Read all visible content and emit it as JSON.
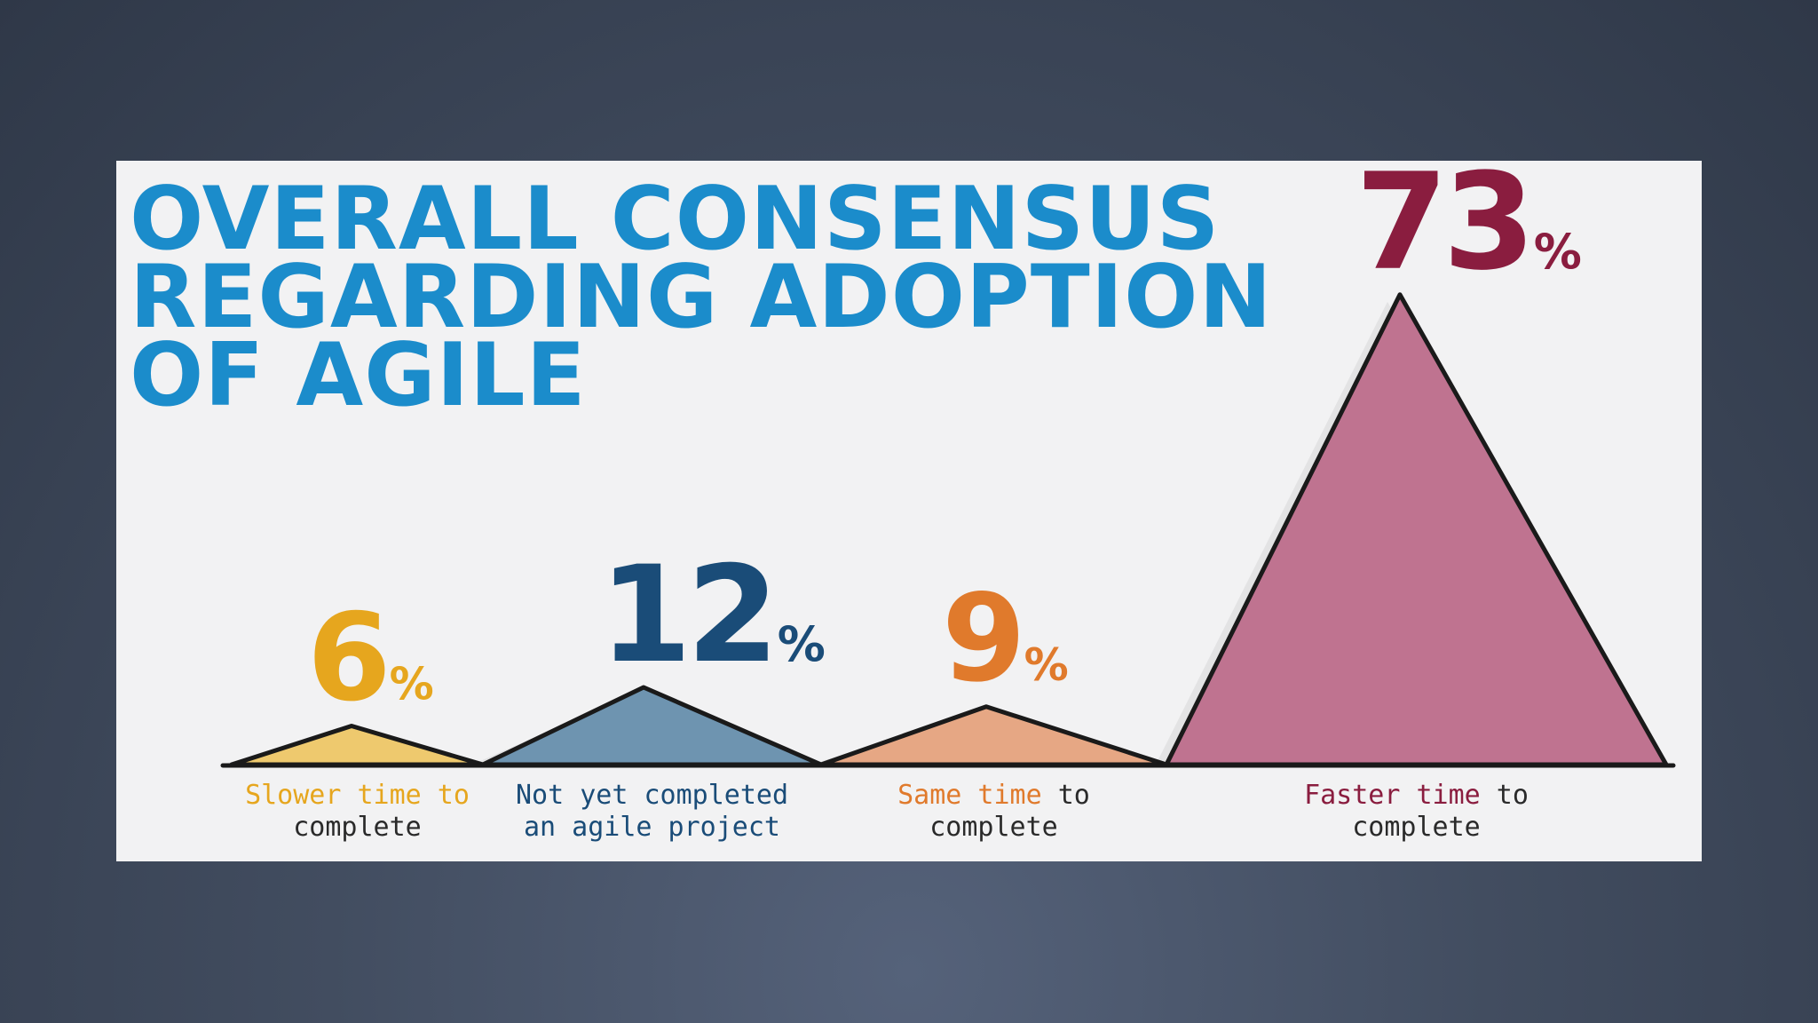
{
  "chart_data": {
    "type": "area",
    "title_lines": [
      "OVERALL CONSENSUS",
      "REGARDING ADOPTION",
      "OF AGILE"
    ],
    "unit": "%",
    "categories": [
      {
        "label_lines": [
          [
            {
              "text": "Slower time to",
              "tone": "accent"
            }
          ],
          [
            {
              "text": "complete",
              "tone": "dark"
            }
          ]
        ],
        "value": 6,
        "value_text": "6",
        "color": "#e6a61e",
        "fill": "#eec96e"
      },
      {
        "label_lines": [
          [
            {
              "text": "Not yet completed",
              "tone": "accent"
            }
          ],
          [
            {
              "text": "an agile project",
              "tone": "accent"
            }
          ]
        ],
        "value": 12,
        "value_text": "12",
        "color": "#1a4c78",
        "fill": "#6e94b0"
      },
      {
        "label_lines": [
          [
            {
              "text": "Same time",
              "tone": "accent"
            },
            {
              "text": " to",
              "tone": "dark"
            }
          ],
          [
            {
              "text": "complete",
              "tone": "dark"
            }
          ]
        ],
        "value": 9,
        "value_text": "9",
        "color": "#e07a2c",
        "fill": "#e6a784"
      },
      {
        "label_lines": [
          [
            {
              "text": "Faster time",
              "tone": "accent"
            },
            {
              "text": " to",
              "tone": "dark"
            }
          ],
          [
            {
              "text": "complete",
              "tone": "dark"
            }
          ]
        ],
        "value": 73,
        "value_text": "73",
        "color": "#8a1d3f",
        "fill": "#bf7390"
      }
    ],
    "colors": {
      "title": "#1b8ccb",
      "outline": "#1a1a1a",
      "label_dark": "#2a2a2a",
      "background": "#f2f2f3"
    },
    "grid": false,
    "legend": "none"
  }
}
